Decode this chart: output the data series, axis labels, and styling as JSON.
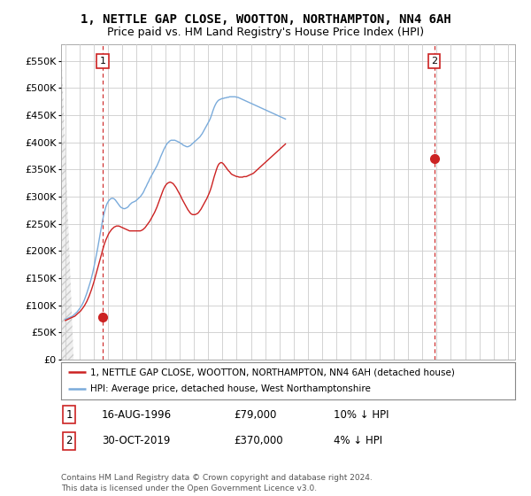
{
  "title": "1, NETTLE GAP CLOSE, WOOTTON, NORTHAMPTON, NN4 6AH",
  "subtitle": "Price paid vs. HM Land Registry's House Price Index (HPI)",
  "title_fontsize": 10,
  "subtitle_fontsize": 9,
  "background_color": "#ffffff",
  "plot_bg_color": "#ffffff",
  "grid_color": "#cccccc",
  "hpi_color": "#7aabdb",
  "price_color": "#cc2222",
  "ylim": [
    0,
    580000
  ],
  "yticks": [
    0,
    50000,
    100000,
    150000,
    200000,
    250000,
    300000,
    350000,
    400000,
    450000,
    500000,
    550000
  ],
  "ytick_labels": [
    "£0",
    "£50K",
    "£100K",
    "£150K",
    "£200K",
    "£250K",
    "£300K",
    "£350K",
    "£400K",
    "£450K",
    "£500K",
    "£550K"
  ],
  "xlim_start": 1993.7,
  "xlim_end": 2025.5,
  "xticks": [
    1994,
    1995,
    1996,
    1997,
    1998,
    1999,
    2000,
    2001,
    2002,
    2003,
    2004,
    2005,
    2006,
    2007,
    2008,
    2009,
    2010,
    2011,
    2012,
    2013,
    2014,
    2015,
    2016,
    2017,
    2018,
    2019,
    2020,
    2021,
    2022,
    2023,
    2024,
    2025
  ],
  "sale1_x": 1996.62,
  "sale1_y": 79000,
  "sale2_x": 2019.83,
  "sale2_y": 370000,
  "legend_line1": "1, NETTLE GAP CLOSE, WOOTTON, NORTHAMPTON, NN4 6AH (detached house)",
  "legend_line2": "HPI: Average price, detached house, West Northamptonshire",
  "table_row1": [
    "1",
    "16-AUG-1996",
    "£79,000",
    "10% ↓ HPI"
  ],
  "table_row2": [
    "2",
    "30-OCT-2019",
    "£370,000",
    "4% ↓ HPI"
  ],
  "footer": "Contains HM Land Registry data © Crown copyright and database right 2024.\nThis data is licensed under the Open Government Licence v3.0.",
  "hpi_y": [
    74000,
    75000,
    76000,
    77000,
    78000,
    79000,
    80000,
    82000,
    84000,
    86000,
    88000,
    91000,
    94000,
    97000,
    101000,
    105000,
    110000,
    116000,
    122000,
    129000,
    136000,
    143000,
    151000,
    160000,
    170000,
    181000,
    192000,
    203000,
    215000,
    228000,
    241000,
    253000,
    264000,
    273000,
    281000,
    287000,
    291000,
    294000,
    296000,
    297000,
    297000,
    296000,
    294000,
    291000,
    288000,
    285000,
    282000,
    280000,
    279000,
    278000,
    278000,
    279000,
    280000,
    282000,
    285000,
    287000,
    289000,
    290000,
    291000,
    292000,
    294000,
    296000,
    298000,
    300000,
    303000,
    306000,
    310000,
    315000,
    319000,
    324000,
    328000,
    333000,
    337000,
    341000,
    345000,
    349000,
    353000,
    357000,
    362000,
    367000,
    373000,
    378000,
    383000,
    388000,
    392000,
    396000,
    399000,
    401000,
    403000,
    404000,
    404000,
    404000,
    404000,
    403000,
    402000,
    401000,
    400000,
    398000,
    397000,
    395000,
    394000,
    393000,
    392000,
    392000,
    393000,
    394000,
    396000,
    398000,
    400000,
    402000,
    404000,
    406000,
    408000,
    410000,
    413000,
    416000,
    420000,
    424000,
    428000,
    432000,
    436000,
    440000,
    445000,
    451000,
    458000,
    464000,
    469000,
    473000,
    476000,
    478000,
    479000,
    480000,
    481000,
    481000,
    482000,
    482000,
    483000,
    483000,
    484000,
    484000,
    484000,
    484000,
    484000,
    484000,
    483000,
    483000,
    482000,
    481000,
    480000,
    479000,
    478000,
    477000,
    476000,
    475000,
    474000,
    473000,
    472000,
    471000,
    470000,
    469000,
    468000,
    467000,
    466000,
    465000,
    464000,
    463000,
    462000,
    461000,
    460000,
    459000,
    458000,
    457000,
    456000,
    455000,
    454000,
    453000,
    452000,
    451000,
    450000,
    449000,
    448000,
    447000,
    446000,
    445000,
    444000,
    443000
  ],
  "price_y": [
    72000,
    73000,
    74000,
    75000,
    76000,
    77000,
    78000,
    79000,
    80000,
    82000,
    84000,
    86000,
    88000,
    90000,
    93000,
    96000,
    99000,
    103000,
    107000,
    112000,
    117000,
    123000,
    129000,
    136000,
    143000,
    151000,
    159000,
    167000,
    175000,
    183000,
    191000,
    199000,
    207000,
    214000,
    220000,
    225000,
    230000,
    234000,
    237000,
    240000,
    242000,
    244000,
    245000,
    246000,
    246000,
    246000,
    245000,
    244000,
    243000,
    242000,
    241000,
    240000,
    239000,
    238000,
    237000,
    237000,
    237000,
    237000,
    237000,
    237000,
    237000,
    237000,
    237000,
    237000,
    238000,
    239000,
    241000,
    243000,
    246000,
    249000,
    252000,
    255000,
    259000,
    263000,
    267000,
    271000,
    276000,
    281000,
    287000,
    293000,
    299000,
    305000,
    311000,
    316000,
    320000,
    323000,
    325000,
    326000,
    327000,
    326000,
    325000,
    323000,
    320000,
    317000,
    313000,
    309000,
    305000,
    301000,
    296000,
    292000,
    288000,
    284000,
    280000,
    276000,
    273000,
    270000,
    268000,
    267000,
    267000,
    267000,
    268000,
    269000,
    271000,
    274000,
    277000,
    281000,
    285000,
    289000,
    293000,
    297000,
    302000,
    307000,
    313000,
    320000,
    328000,
    336000,
    343000,
    350000,
    356000,
    360000,
    362000,
    363000,
    362000,
    360000,
    357000,
    354000,
    351000,
    348000,
    346000,
    343000,
    341000,
    340000,
    339000,
    338000,
    337000,
    337000,
    336000,
    336000,
    336000,
    336000,
    337000,
    337000,
    337000,
    338000,
    339000,
    340000,
    341000,
    342000,
    343000,
    345000,
    347000,
    349000,
    351000,
    353000,
    355000,
    357000,
    359000,
    361000,
    363000,
    365000,
    367000,
    369000,
    371000,
    373000,
    375000,
    377000,
    379000,
    381000,
    383000,
    385000,
    387000,
    389000,
    391000,
    393000,
    395000,
    397000
  ]
}
